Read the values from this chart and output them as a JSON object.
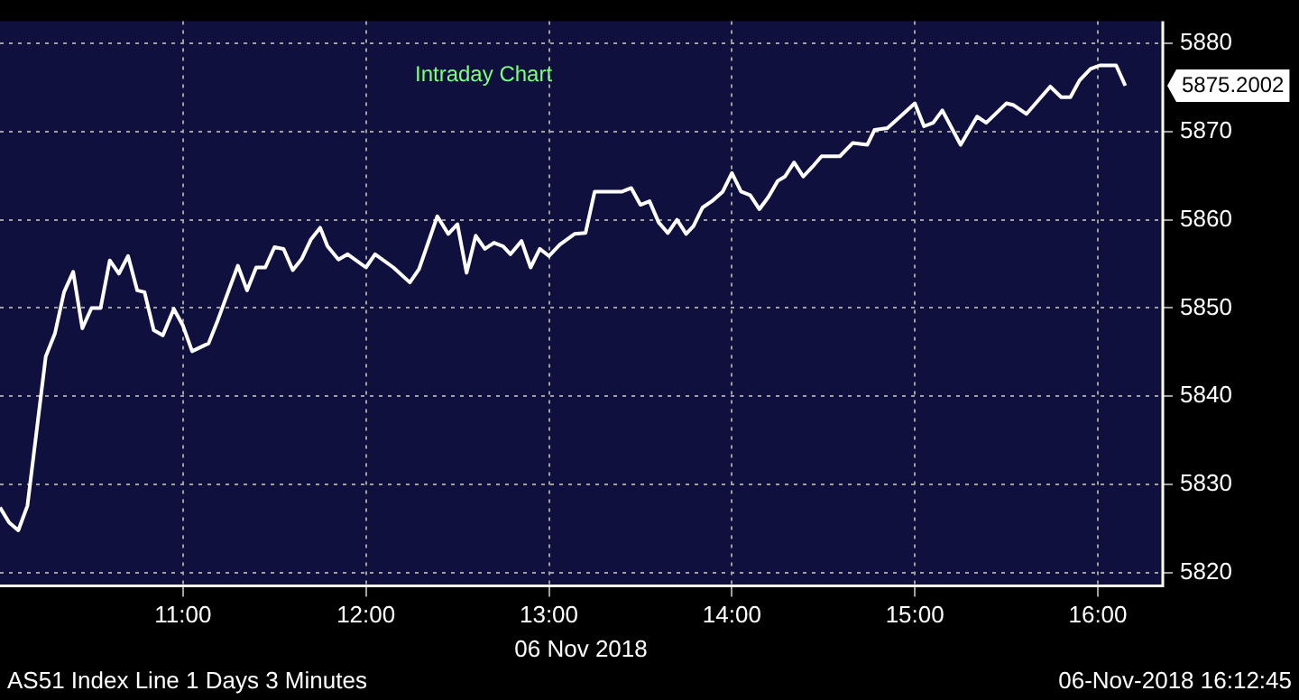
{
  "chart_data": {
    "type": "line",
    "title": "Intraday Chart",
    "xlabel": "06 Nov 2018",
    "x": [
      10.0,
      10.05,
      10.1,
      10.15,
      10.25,
      10.3,
      10.35,
      10.4,
      10.45,
      10.5,
      10.55,
      10.6,
      10.65,
      10.7,
      10.75,
      10.79,
      10.84,
      10.89,
      10.95,
      11.0,
      11.05,
      11.14,
      11.19,
      11.25,
      11.3,
      11.35,
      11.4,
      11.45,
      11.5,
      11.55,
      11.6,
      11.65,
      11.7,
      11.75,
      11.79,
      11.85,
      11.9,
      12.0,
      12.05,
      12.15,
      12.24,
      12.29,
      12.39,
      12.45,
      12.5,
      12.55,
      12.6,
      12.65,
      12.7,
      12.75,
      12.79,
      12.85,
      12.9,
      12.95,
      13.0,
      13.06,
      13.14,
      13.2,
      13.25,
      13.3,
      13.4,
      13.45,
      13.5,
      13.55,
      13.6,
      13.65,
      13.7,
      13.75,
      13.79,
      13.84,
      13.89,
      13.95,
      14.0,
      14.05,
      14.1,
      14.15,
      14.2,
      14.25,
      14.29,
      14.34,
      14.39,
      14.44,
      14.49,
      14.59,
      14.66,
      14.74,
      14.78,
      14.85,
      14.92,
      15.0,
      15.05,
      15.1,
      15.15,
      15.25,
      15.34,
      15.39,
      15.5,
      15.54,
      15.61,
      15.74,
      15.8,
      15.85,
      15.9,
      15.96,
      16.01,
      16.1,
      16.15
    ],
    "series": [
      {
        "color": "#ffffff",
        "values": [
          5827.4,
          5825.7,
          5824.8,
          5827.6,
          5844.5,
          5847.1,
          5851.8,
          5854.1,
          5847.7,
          5850.0,
          5850.0,
          5855.4,
          5853.9,
          5855.9,
          5852.0,
          5851.8,
          5847.5,
          5846.9,
          5849.9,
          5848.0,
          5845.1,
          5846.0,
          5848.6,
          5852.0,
          5854.8,
          5852.0,
          5854.6,
          5854.6,
          5856.9,
          5856.7,
          5854.3,
          5855.6,
          5857.8,
          5859.1,
          5857.0,
          5855.5,
          5856.1,
          5854.6,
          5856.1,
          5854.6,
          5852.9,
          5854.4,
          5860.4,
          5858.4,
          5859.5,
          5854.0,
          5858.2,
          5856.7,
          5857.4,
          5857.0,
          5856.1,
          5857.6,
          5854.6,
          5856.7,
          5855.9,
          5857.2,
          5858.4,
          5858.5,
          5863.2,
          5863.2,
          5863.2,
          5863.6,
          5861.7,
          5862.1,
          5859.7,
          5858.5,
          5860.0,
          5858.4,
          5859.3,
          5861.4,
          5862.1,
          5863.2,
          5865.3,
          5863.2,
          5862.8,
          5861.2,
          5862.6,
          5864.4,
          5864.9,
          5866.5,
          5864.9,
          5866.0,
          5867.2,
          5867.2,
          5868.7,
          5868.5,
          5870.2,
          5870.4,
          5871.7,
          5873.2,
          5870.6,
          5871.0,
          5872.4,
          5868.5,
          5871.7,
          5871.0,
          5873.2,
          5873.0,
          5872.0,
          5875.1,
          5873.9,
          5873.9,
          5875.8,
          5877.1,
          5877.5,
          5877.5,
          5875.2
        ]
      }
    ],
    "xlim": [
      10,
      16.35
    ],
    "xticks": [
      {
        "value": 11,
        "label": "11:00"
      },
      {
        "value": 12,
        "label": "12:00"
      },
      {
        "value": 13,
        "label": "13:00"
      },
      {
        "value": 14,
        "label": "14:00"
      },
      {
        "value": 15,
        "label": "15:00"
      },
      {
        "value": 16,
        "label": "16:00"
      }
    ],
    "ylim": [
      5818.5,
      5882.5
    ],
    "yticks": [
      5820,
      5830,
      5840,
      5850,
      5860,
      5870,
      5880
    ],
    "grid": true,
    "legend": false,
    "marker": "none",
    "line_style": "solid",
    "annotations": [
      {
        "text": "5875.2002",
        "x": 16.15,
        "y": 5875.2
      },
      "AS51 Index Line 1 Days 3 Minutes",
      "06-Nov-2018 16:12:45"
    ]
  }
}
